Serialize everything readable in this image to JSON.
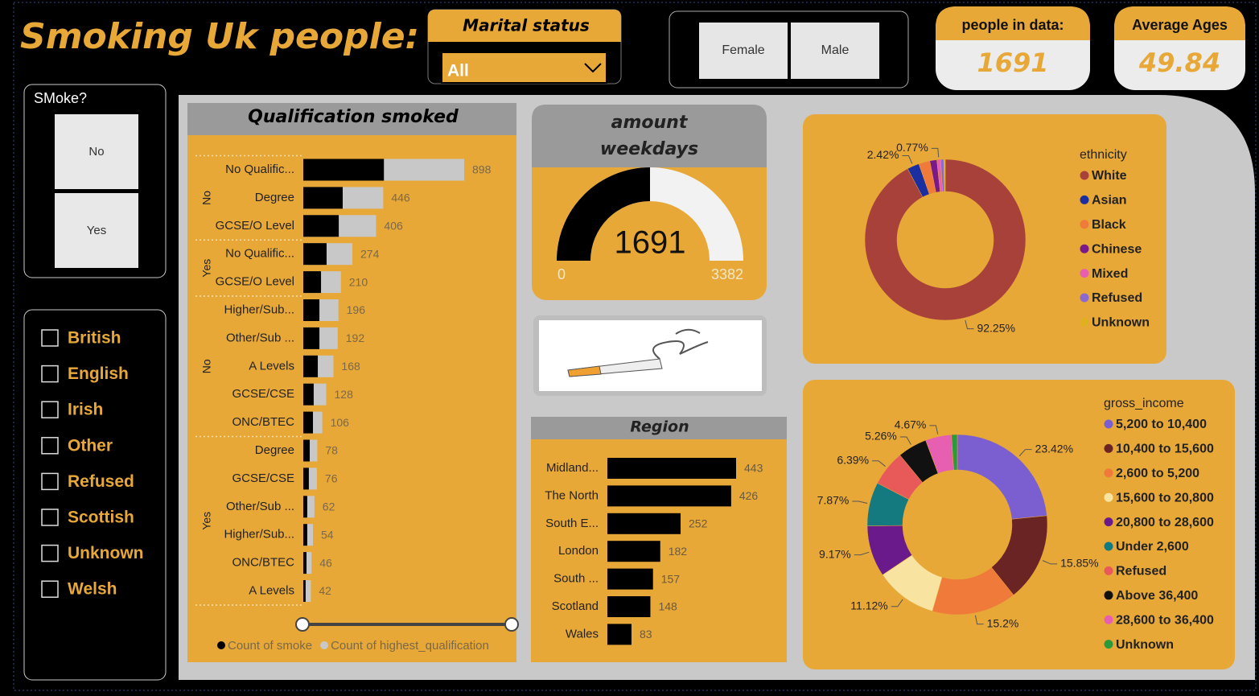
{
  "title": "Smoking Uk people:",
  "marital_slicer": {
    "label": "Marital status",
    "value": "All"
  },
  "gender_buttons": [
    "Female",
    "Male"
  ],
  "cards": [
    {
      "label": "people in data:",
      "value": 1691
    },
    {
      "label": "Average Ages",
      "value": 49.84
    }
  ],
  "smoke_slicer": {
    "label": "SMoke?",
    "options": [
      "No",
      "Yes"
    ]
  },
  "nationality_slicer": {
    "options": [
      "British",
      "English",
      "Irish",
      "Other",
      "Refused",
      "Scottish",
      "Unknown",
      "Welsh"
    ]
  },
  "chart_data": [
    {
      "type": "hbar",
      "title": "Qualification smoked",
      "categories": [
        "No Qualific...",
        "Degree",
        "GCSE/O Level",
        "No Qualific...",
        "GCSE/O Level",
        "Higher/Sub...",
        "Other/Sub ...",
        "A Levels",
        "GCSE/CSE",
        "ONC/BTEC",
        "Degree",
        "GCSE/CSE",
        "Other/Sub ...",
        "Higher/Sub...",
        "ONC/BTEC",
        "A Levels"
      ],
      "category_groups": [
        "No",
        "No",
        "No",
        "Yes",
        "Yes",
        "No",
        "No",
        "No",
        "No",
        "No",
        "Yes",
        "Yes",
        "Yes",
        "Yes",
        "Yes",
        "Yes"
      ],
      "series": [
        {
          "name": "Count of smoke",
          "color": "#000000",
          "values": [
            450,
            220,
            198,
            130,
            99,
            90,
            90,
            81,
            58,
            54,
            36,
            31,
            22,
            22,
            18,
            13
          ]
        },
        {
          "name": "Count of highest_qualification",
          "color": "#c8c8c8",
          "values": [
            898,
            446,
            406,
            274,
            210,
            196,
            192,
            168,
            128,
            106,
            78,
            76,
            62,
            54,
            46,
            42
          ]
        }
      ]
    },
    {
      "type": "gauge",
      "title": "amount weekdays smoked",
      "value": 1691,
      "min": 0,
      "max": 3382,
      "color": "#000000",
      "track_color": "#f2f2f2"
    },
    {
      "type": "hbar",
      "title": "Region",
      "categories": [
        "Midland...",
        "The North",
        "South E...",
        "London",
        "South ...",
        "Scotland",
        "Wales"
      ],
      "values": [
        443,
        426,
        252,
        182,
        157,
        148,
        83
      ],
      "color": "#000000"
    },
    {
      "type": "donut",
      "legend_title": "ethnicity",
      "categories": [
        "White",
        "Asian",
        "Black",
        "Chinese",
        "Mixed",
        "Refused",
        "Unknown"
      ],
      "values": [
        92.25,
        2.42,
        2.24,
        1.42,
        0.77,
        0.6,
        0.3
      ],
      "value_labels": [
        "92.25%",
        "2.42%",
        null,
        null,
        "0.77%",
        null,
        null
      ],
      "colors": [
        "#a8413a",
        "#1b2fa0",
        "#f07a3a",
        "#7a1a8a",
        "#e65fb0",
        "#8a6ad0",
        "#e0b020"
      ]
    },
    {
      "type": "donut",
      "legend_title": "gross_income",
      "categories": [
        "5,200 to 10,400",
        "10,400 to 15,600",
        "2,600 to 5,200",
        "15,600 to 20,800",
        "20,800 to 28,600",
        "Under 2,600",
        "Refused",
        "Above 36,400",
        "28,600 to 36,400",
        "Unknown"
      ],
      "values": [
        23.42,
        15.85,
        15.2,
        11.12,
        9.17,
        7.87,
        6.39,
        5.26,
        4.67,
        1.05
      ],
      "value_labels": [
        "23.42%",
        "15.85%",
        "15.2%",
        "11.12%",
        "9.17%",
        "7.87%",
        "6.39%",
        "5.26%",
        "4.67%",
        null
      ],
      "colors": [
        "#7b5fd0",
        "#6b2424",
        "#f07a3a",
        "#f9e3a0",
        "#6a1a8a",
        "#157a80",
        "#e85a5a",
        "#111111",
        "#e65fb0",
        "#2a9a3a"
      ]
    }
  ]
}
